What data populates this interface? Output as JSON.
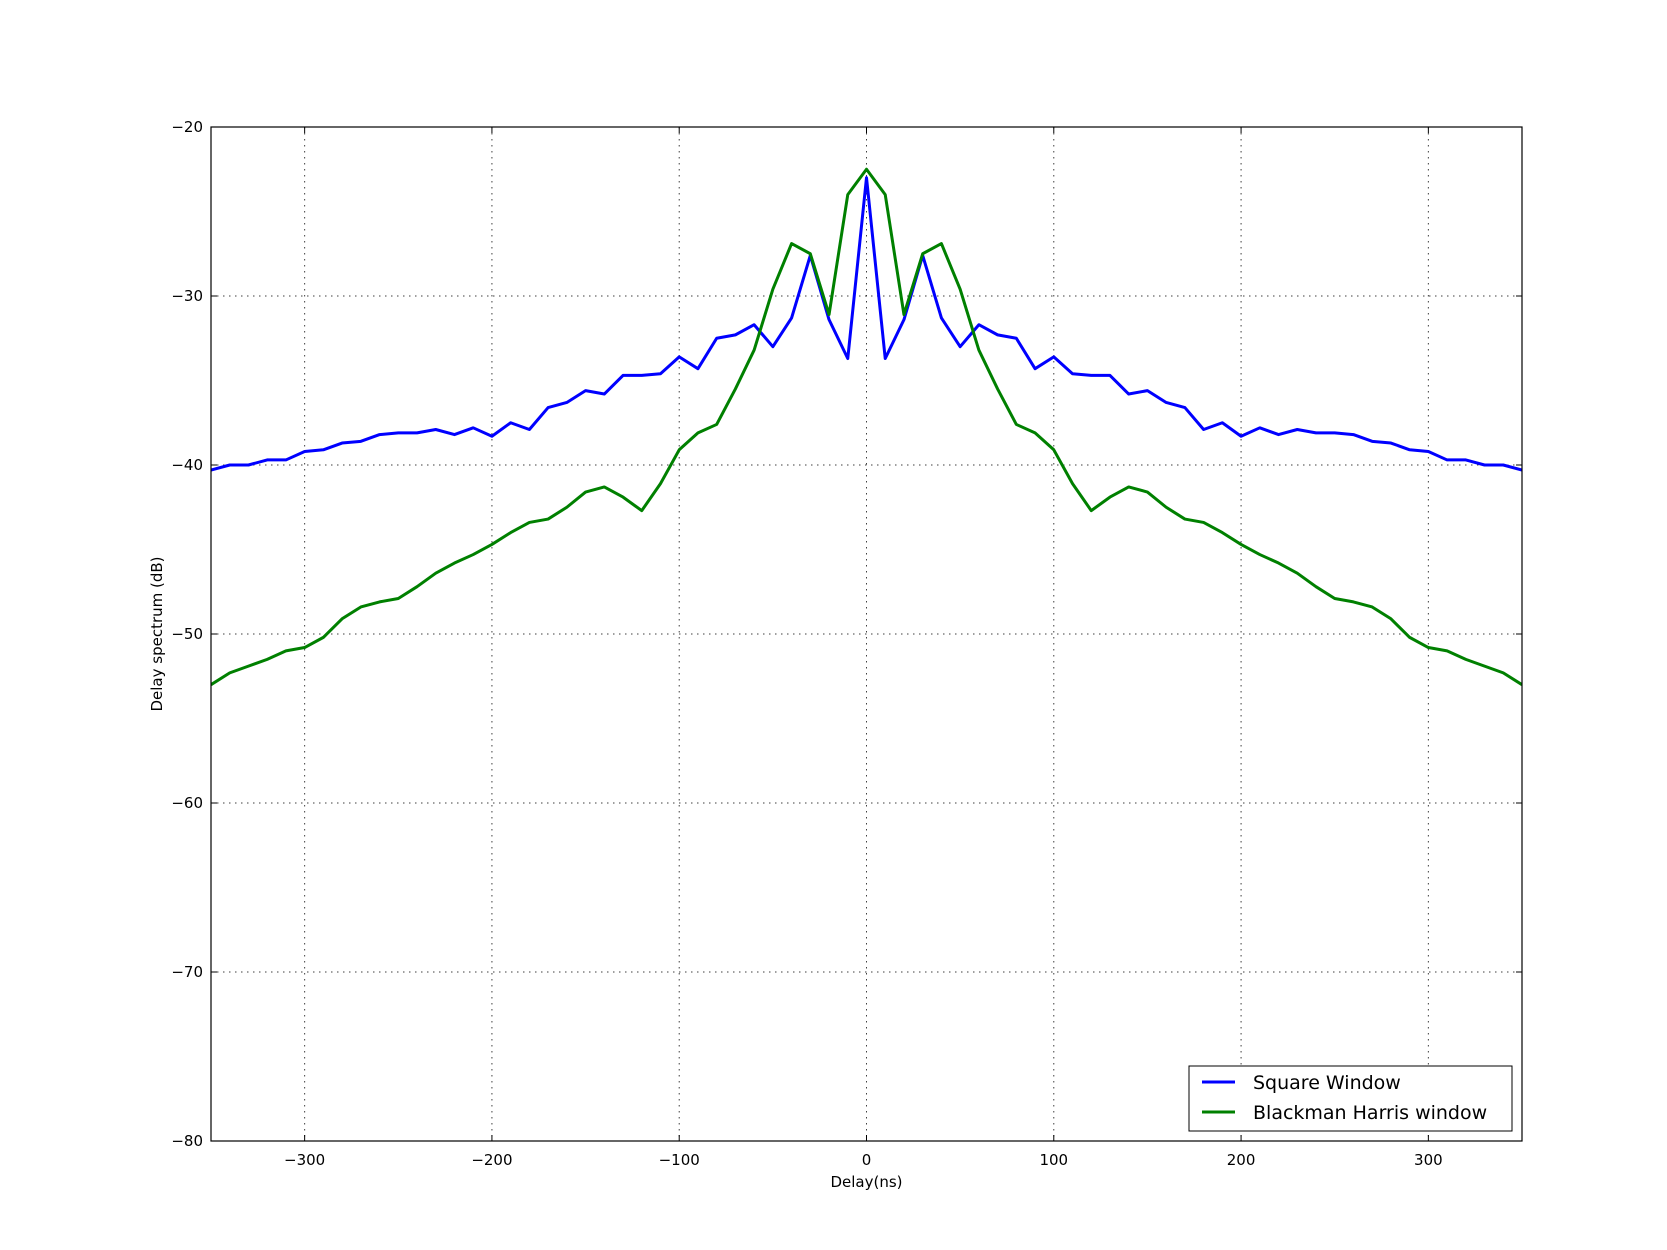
{
  "chart_data": {
    "type": "line",
    "title": "",
    "xlabel": "Delay(ns)",
    "ylabel": "Delay spectrum (dB)",
    "xlim": [
      -350,
      350
    ],
    "ylim": [
      -80,
      -20
    ],
    "xticks": [
      -300,
      -200,
      -100,
      0,
      100,
      200,
      300
    ],
    "yticks": [
      -80,
      -70,
      -60,
      -50,
      -40,
      -30,
      -20
    ],
    "grid": true,
    "legend_position": "lower-right",
    "x": [
      -350,
      -340,
      -330,
      -320,
      -310,
      -300,
      -290,
      -280,
      -270,
      -260,
      -250,
      -240,
      -230,
      -220,
      -210,
      -200,
      -190,
      -180,
      -170,
      -160,
      -150,
      -140,
      -130,
      -120,
      -110,
      -100,
      -90,
      -80,
      -70,
      -60,
      -50,
      -40,
      -30,
      -20,
      -10,
      0,
      10,
      20,
      30,
      40,
      50,
      60,
      70,
      80,
      90,
      100,
      110,
      120,
      130,
      140,
      150,
      160,
      170,
      180,
      190,
      200,
      210,
      220,
      230,
      240,
      250,
      260,
      270,
      280,
      290,
      300,
      310,
      320,
      330,
      340,
      350
    ],
    "series": [
      {
        "name": "Square Window",
        "color": "#0000ff",
        "values": [
          -40.3,
          -40.0,
          -40.0,
          -39.7,
          -39.7,
          -39.2,
          -39.1,
          -38.7,
          -38.6,
          -38.2,
          -38.1,
          -38.1,
          -37.9,
          -38.2,
          -37.8,
          -38.3,
          -37.5,
          -37.9,
          -36.6,
          -36.3,
          -35.6,
          -35.8,
          -34.7,
          -34.7,
          -34.6,
          -33.6,
          -34.3,
          -32.5,
          -32.3,
          -31.7,
          -33.0,
          -31.3,
          -27.6,
          -31.4,
          -33.7,
          -23.0,
          -33.7,
          -31.4,
          -27.6,
          -31.3,
          -33.0,
          -31.7,
          -32.3,
          -32.5,
          -34.3,
          -33.6,
          -34.6,
          -34.7,
          -34.7,
          -35.8,
          -35.6,
          -36.3,
          -36.6,
          -37.9,
          -37.5,
          -38.3,
          -37.8,
          -38.2,
          -37.9,
          -38.1,
          -38.1,
          -38.2,
          -38.6,
          -38.7,
          -39.1,
          -39.2,
          -39.7,
          -39.7,
          -40.0,
          -40.0,
          -40.3
        ]
      },
      {
        "name": "Blackman Harris window",
        "color": "#008000",
        "values": [
          -53.0,
          -52.3,
          -51.9,
          -51.5,
          -51.0,
          -50.8,
          -50.2,
          -49.1,
          -48.4,
          -48.1,
          -47.9,
          -47.2,
          -46.4,
          -45.8,
          -45.3,
          -44.7,
          -44.0,
          -43.4,
          -43.2,
          -42.5,
          -41.6,
          -41.3,
          -41.9,
          -42.7,
          -41.1,
          -39.1,
          -38.1,
          -37.6,
          -35.5,
          -33.2,
          -29.6,
          -26.9,
          -27.5,
          -31.1,
          -24.0,
          -22.5,
          -24.0,
          -31.1,
          -27.5,
          -26.9,
          -29.6,
          -33.2,
          -35.5,
          -37.6,
          -38.1,
          -39.1,
          -41.1,
          -42.7,
          -41.9,
          -41.3,
          -41.6,
          -42.5,
          -43.2,
          -43.4,
          -44.0,
          -44.7,
          -45.3,
          -45.8,
          -46.4,
          -47.2,
          -47.9,
          -48.1,
          -48.4,
          -49.1,
          -50.2,
          -50.8,
          -51.0,
          -51.5,
          -51.9,
          -52.3,
          -53.0
        ]
      }
    ]
  }
}
